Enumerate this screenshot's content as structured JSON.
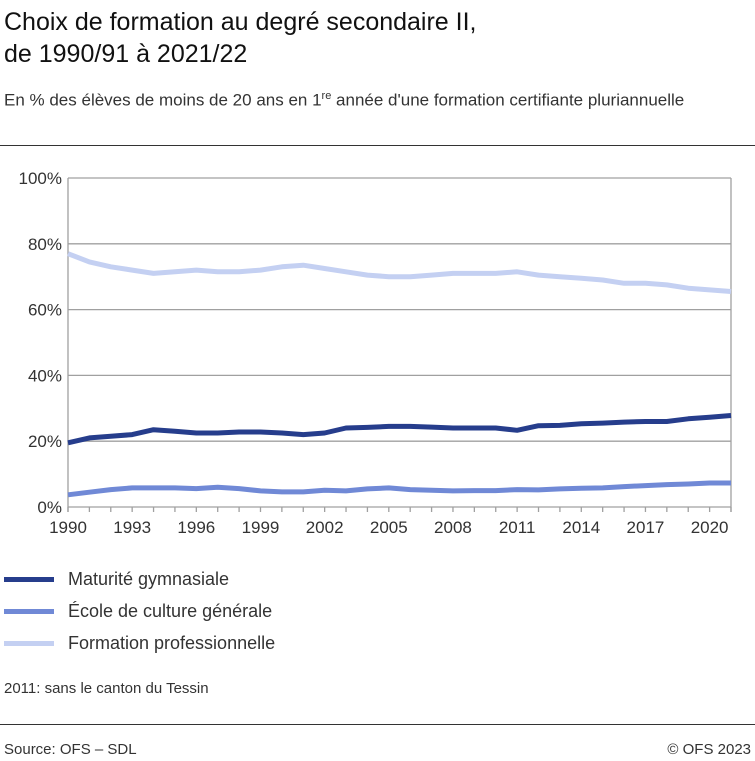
{
  "header": {
    "title_line1": "Choix de formation au degré secondaire II,",
    "title_line2": "de 1990/91 à 2021/22",
    "subtitle": "En % des élèves de moins de 20 ans en 1",
    "subtitle_sup": "re",
    "subtitle_rest": " année d'une formation certifiante pluriannuelle"
  },
  "chart_data": {
    "type": "line",
    "x": [
      1990,
      1991,
      1992,
      1993,
      1994,
      1995,
      1996,
      1997,
      1998,
      1999,
      2000,
      2001,
      2002,
      2003,
      2004,
      2005,
      2006,
      2007,
      2008,
      2009,
      2010,
      2011,
      2012,
      2013,
      2014,
      2015,
      2016,
      2017,
      2018,
      2019,
      2020,
      2021
    ],
    "xlim": [
      1990,
      2021
    ],
    "x_ticks": [
      "1990",
      "1993",
      "1996",
      "1999",
      "2002",
      "2005",
      "2008",
      "2011",
      "2014",
      "2017",
      "2020"
    ],
    "ylim": [
      0,
      100
    ],
    "y_ticks": [
      "0%",
      "20%",
      "40%",
      "60%",
      "80%",
      "100%"
    ],
    "grid": true,
    "legend_placement": "bottom",
    "series": [
      {
        "name": "Maturité gymnasiale",
        "color": "#263d8c",
        "values": [
          19.5,
          21,
          21.5,
          22,
          23.5,
          23,
          22.5,
          22.5,
          22.8,
          22.8,
          22.5,
          22,
          22.5,
          24,
          24.2,
          24.5,
          24.5,
          24.3,
          24,
          24,
          24,
          23.3,
          24.7,
          24.8,
          25.3,
          25.5,
          25.8,
          26,
          26,
          26.8,
          27.3,
          27.8
        ]
      },
      {
        "name": "École de culture générale",
        "color": "#7089d6",
        "values": [
          3.7,
          4.5,
          5.3,
          5.8,
          5.8,
          5.8,
          5.6,
          6,
          5.6,
          4.9,
          4.6,
          4.6,
          5.1,
          4.9,
          5.5,
          5.8,
          5.3,
          5.1,
          4.9,
          5,
          5,
          5.3,
          5.2,
          5.5,
          5.7,
          5.8,
          6.2,
          6.5,
          6.8,
          7,
          7.3,
          7.3
        ]
      },
      {
        "name": "Formation professionnelle",
        "color": "#c4d0f2",
        "values": [
          77,
          74.5,
          73,
          72,
          71,
          71.5,
          72,
          71.5,
          71.5,
          72,
          73,
          73.5,
          72.5,
          71.5,
          70.5,
          70,
          70,
          70.5,
          71,
          71,
          71,
          71.5,
          70.5,
          70,
          69.5,
          69,
          68,
          68,
          67.5,
          66.5,
          66,
          65.5
        ]
      }
    ]
  },
  "footer": {
    "note": "2011: sans le canton du Tessin",
    "source": "Source: OFS – SDL",
    "copyright": "© OFS 2023"
  }
}
